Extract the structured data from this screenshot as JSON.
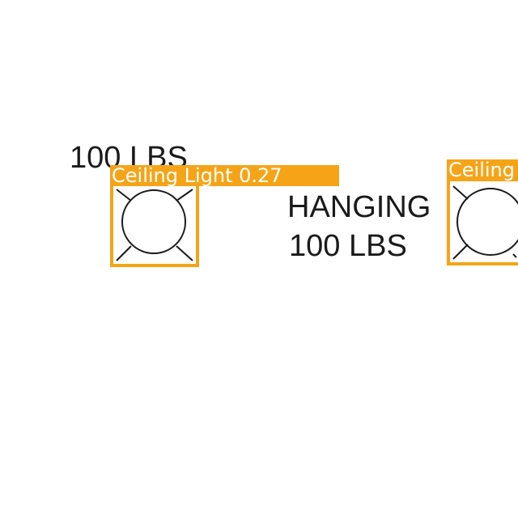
{
  "drawing": {
    "texts": [
      {
        "name": "weight-label-left",
        "value": "100 LBS"
      },
      {
        "name": "hanging-label",
        "value": "HANGING"
      },
      {
        "name": "weight-label-center",
        "value": "100 LBS"
      }
    ]
  },
  "detections": [
    {
      "label": "Ceiling Light 0.27",
      "class": "Ceiling Light",
      "confidence": 0.27
    },
    {
      "label": "Ceiling",
      "class": "Ceiling Light"
    }
  ],
  "colors": {
    "detection_box": "#f5a418",
    "detection_label_text": "#ffffff",
    "drawing_ink": "#1a1a1a"
  },
  "icons": [
    "ceiling-light-icon"
  ]
}
